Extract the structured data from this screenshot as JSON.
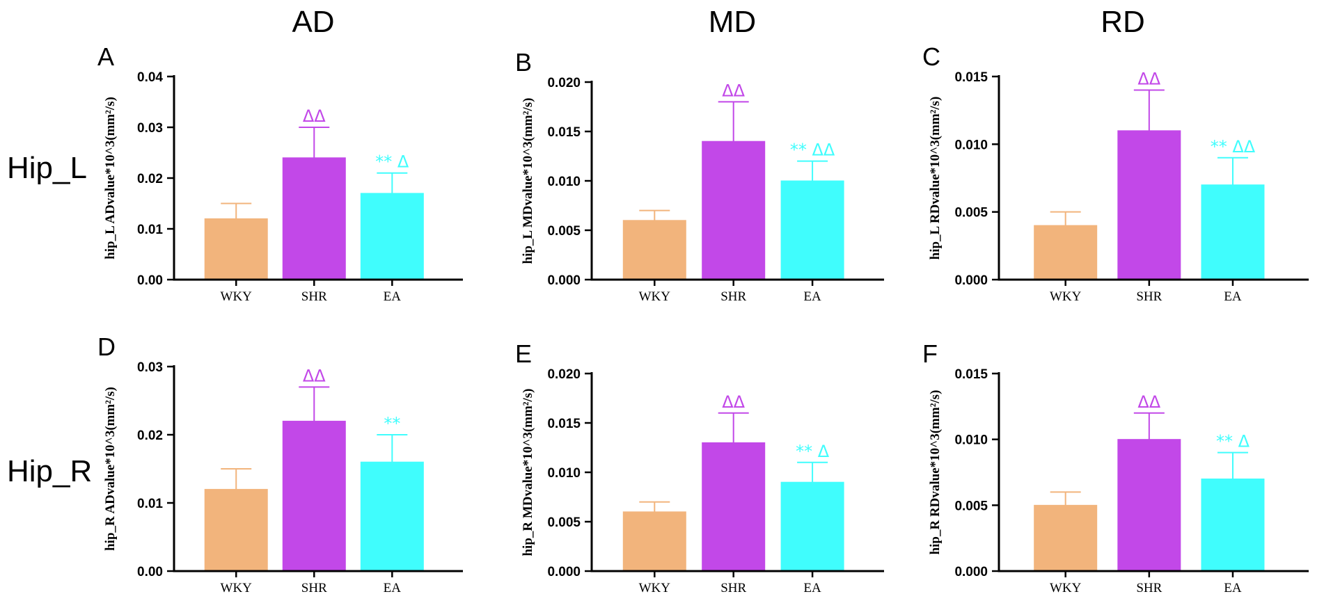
{
  "figure": {
    "column_headers": [
      "AD",
      "MD",
      "RD"
    ],
    "row_labels": [
      "Hip_L",
      "Hip_R"
    ]
  },
  "colors": {
    "WKY": "#f2b47c",
    "SHR": "#c248e8",
    "EA": "#40fdfd",
    "axis": "#000000"
  },
  "chart_data": [
    {
      "panel": "A",
      "type": "bar",
      "title": "AD",
      "ylabel": "hip_L ADvalue*10^3(mm²/s)",
      "categories": [
        "WKY",
        "SHR",
        "EA"
      ],
      "values": [
        0.012,
        0.024,
        0.017
      ],
      "errors": [
        0.003,
        0.006,
        0.004
      ],
      "ylim": [
        0,
        0.04
      ],
      "yticks": [
        "0.00",
        "0.01",
        "0.02",
        "0.03",
        "0.04"
      ],
      "annotations": [
        "",
        "ΔΔ",
        "** Δ"
      ]
    },
    {
      "panel": "B",
      "type": "bar",
      "title": "MD",
      "ylabel": "hip_L MDvalue*10^3(mm²/s)",
      "categories": [
        "WKY",
        "SHR",
        "EA"
      ],
      "values": [
        0.006,
        0.014,
        0.01
      ],
      "errors": [
        0.001,
        0.004,
        0.002
      ],
      "ylim": [
        0,
        0.02
      ],
      "yticks": [
        "0.000",
        "0.005",
        "0.010",
        "0.015",
        "0.020"
      ],
      "annotations": [
        "",
        "ΔΔ",
        "** ΔΔ"
      ]
    },
    {
      "panel": "C",
      "type": "bar",
      "title": "RD",
      "ylabel": "hip_L RDvalue*10^3(mm²/s)",
      "categories": [
        "WKY",
        "SHR",
        "EA"
      ],
      "values": [
        0.004,
        0.011,
        0.007
      ],
      "errors": [
        0.001,
        0.003,
        0.002
      ],
      "ylim": [
        0,
        0.015
      ],
      "yticks": [
        "0.000",
        "0.005",
        "0.010",
        "0.015"
      ],
      "annotations": [
        "",
        "ΔΔ",
        "** ΔΔ"
      ]
    },
    {
      "panel": "D",
      "type": "bar",
      "ylabel": "hip_R ADvalue*10^3(mm²/s)",
      "categories": [
        "WKY",
        "SHR",
        "EA"
      ],
      "values": [
        0.012,
        0.022,
        0.016
      ],
      "errors": [
        0.003,
        0.005,
        0.004
      ],
      "ylim": [
        0,
        0.03
      ],
      "yticks": [
        "0.00",
        "0.01",
        "0.02",
        "0.03"
      ],
      "annotations": [
        "",
        "ΔΔ",
        "**"
      ]
    },
    {
      "panel": "E",
      "type": "bar",
      "ylabel": "hip_R MDvalue*10^3(mm²/s)",
      "categories": [
        "WKY",
        "SHR",
        "EA"
      ],
      "values": [
        0.006,
        0.013,
        0.009
      ],
      "errors": [
        0.001,
        0.003,
        0.002
      ],
      "ylim": [
        0,
        0.02
      ],
      "yticks": [
        "0.000",
        "0.005",
        "0.010",
        "0.015",
        "0.020"
      ],
      "annotations": [
        "",
        "ΔΔ",
        "** Δ"
      ]
    },
    {
      "panel": "F",
      "type": "bar",
      "ylabel": "hip_R RDvalue*10^3(mm²/s)",
      "categories": [
        "WKY",
        "SHR",
        "EA"
      ],
      "values": [
        0.005,
        0.01,
        0.007
      ],
      "errors": [
        0.001,
        0.002,
        0.002
      ],
      "ylim": [
        0,
        0.015
      ],
      "yticks": [
        "0.000",
        "0.005",
        "0.010",
        "0.015"
      ],
      "annotations": [
        "",
        "ΔΔ",
        "** Δ"
      ]
    }
  ]
}
